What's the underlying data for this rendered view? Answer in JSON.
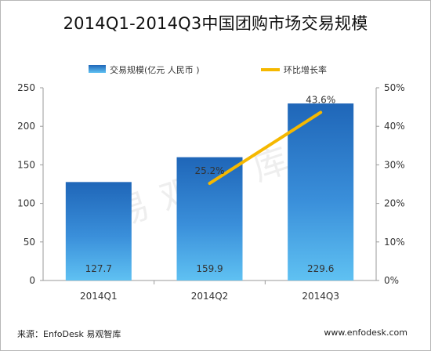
{
  "chart_data": {
    "type": "bar",
    "title": "2014Q1-2014Q3中国团购市场交易规模",
    "categories": [
      "2014Q1",
      "2014Q2",
      "2014Q3"
    ],
    "series": [
      {
        "name": "交易规模(亿元 人民币 )",
        "type": "bar",
        "axis": "left",
        "values": [
          127.7,
          159.9,
          229.6
        ],
        "labels": [
          "127.7",
          "159.9",
          "229.6"
        ],
        "color": "#2a78c6"
      },
      {
        "name": "环比增长率",
        "type": "line",
        "axis": "right",
        "x": [
          "2014Q2",
          "2014Q3"
        ],
        "values": [
          25.2,
          43.6
        ],
        "labels": [
          "25.2%",
          "43.6%"
        ],
        "color": "#f5b800"
      }
    ],
    "y_left": {
      "range": [
        0,
        250
      ],
      "ticks": [
        "0",
        "50",
        "100",
        "150",
        "200",
        "250"
      ]
    },
    "y_right": {
      "range": [
        0,
        50
      ],
      "ticks": [
        "0%",
        "10%",
        "20%",
        "30%",
        "40%",
        "50%"
      ]
    },
    "legend_position": "top",
    "grid": false
  },
  "footer": {
    "source": "来源：EnfoDesk 易观智库",
    "website": "www.enfodesk.com"
  },
  "watermark": "易观智库"
}
